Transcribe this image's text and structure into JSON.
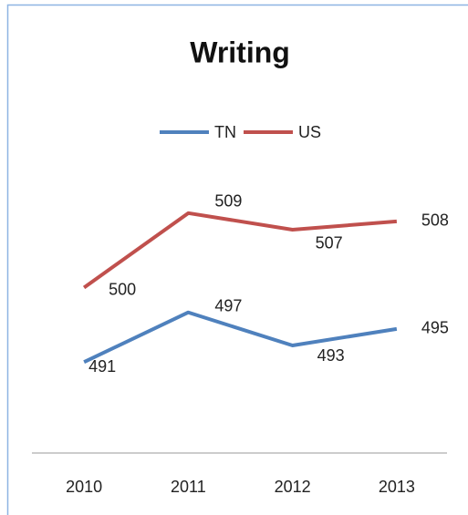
{
  "chart_data": {
    "type": "line",
    "title": "Writing",
    "categories": [
      "2010",
      "2011",
      "2012",
      "2013"
    ],
    "series": [
      {
        "name": "TN",
        "color": "#4f81bd",
        "values": [
          491,
          497,
          493,
          495
        ]
      },
      {
        "name": "US",
        "color": "#c0504d",
        "values": [
          500,
          509,
          507,
          508
        ]
      }
    ],
    "ylim": [
      480,
      520
    ],
    "legend": "top"
  }
}
